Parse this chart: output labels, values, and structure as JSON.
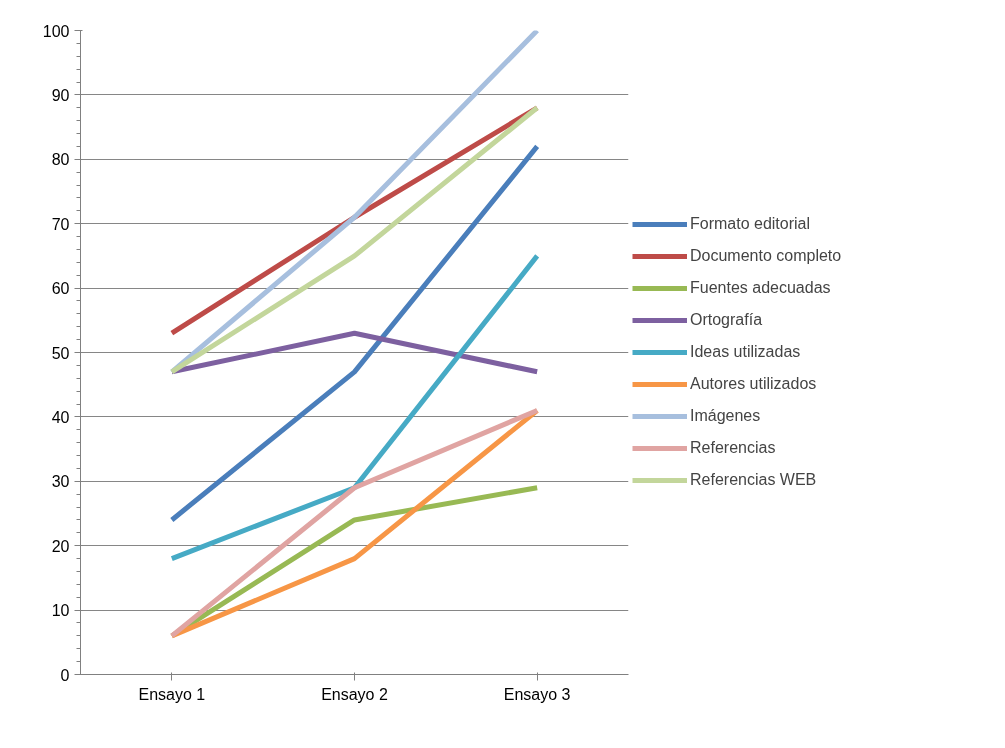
{
  "chart_data": {
    "type": "line",
    "categories": [
      "Ensayo 1",
      "Ensayo 2",
      "Ensayo 3"
    ],
    "ylim": [
      0,
      100
    ],
    "yticks": [
      0,
      10,
      20,
      30,
      40,
      50,
      60,
      70,
      80,
      90,
      100
    ],
    "grid": "y",
    "legend": "right",
    "marker": "none",
    "line_style": "solid",
    "series": [
      {
        "name": "Formato editorial",
        "color": "#4a7ebb",
        "values": [
          24,
          47,
          82
        ]
      },
      {
        "name": "Documento completo",
        "color": "#be4b48",
        "values": [
          53,
          71,
          88
        ]
      },
      {
        "name": "Fuentes adecuadas",
        "color": "#98b954",
        "values": [
          6,
          24,
          29
        ]
      },
      {
        "name": "Ortografía",
        "color": "#7d60a0",
        "values": [
          47,
          53,
          47
        ]
      },
      {
        "name": "Ideas utilizadas",
        "color": "#46aac5",
        "values": [
          18,
          29,
          65
        ]
      },
      {
        "name": "Autores utilizados",
        "color": "#f79646",
        "values": [
          6,
          18,
          41
        ]
      },
      {
        "name": "Imágenes",
        "color": "#a7bfde",
        "values": [
          47,
          71,
          100
        ]
      },
      {
        "name": "Referencias",
        "color": "#e0a4a2",
        "values": [
          6,
          29,
          41
        ]
      },
      {
        "name": "Referencias WEB",
        "color": "#c3d69b",
        "values": [
          47,
          65,
          88
        ]
      }
    ]
  }
}
